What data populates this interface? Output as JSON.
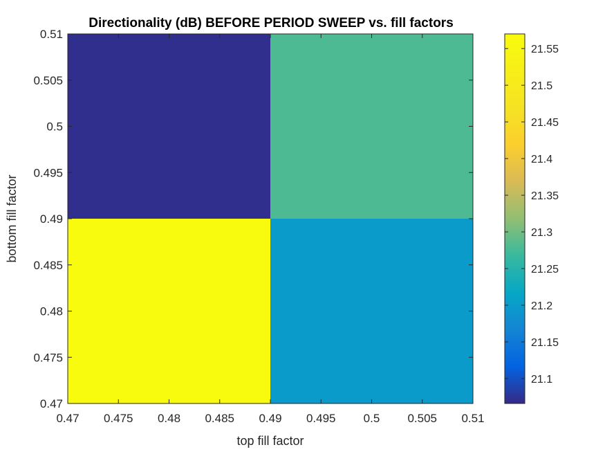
{
  "chart_data": {
    "type": "heatmap",
    "title": "Directionality (dB) BEFORE PERIOD SWEEP vs. fill factors",
    "xlabel": "top fill factor",
    "ylabel": "bottom fill factor",
    "xlim": [
      0.47,
      0.51
    ],
    "ylim": [
      0.47,
      0.51
    ],
    "x_ticks": [
      "0.47",
      "0.475",
      "0.48",
      "0.485",
      "0.49",
      "0.495",
      "0.5",
      "0.505",
      "0.51"
    ],
    "y_ticks": [
      "0.47",
      "0.475",
      "0.48",
      "0.485",
      "0.49",
      "0.495",
      "0.5",
      "0.505",
      "0.51"
    ],
    "cells": [
      {
        "x_range": [
          0.47,
          0.49
        ],
        "y_range": [
          0.47,
          0.49
        ],
        "value": 21.57
      },
      {
        "x_range": [
          0.49,
          0.51
        ],
        "y_range": [
          0.47,
          0.49
        ],
        "value": 21.2
      },
      {
        "x_range": [
          0.47,
          0.49
        ],
        "y_range": [
          0.49,
          0.51
        ],
        "value": 21.07
      },
      {
        "x_range": [
          0.49,
          0.51
        ],
        "y_range": [
          0.49,
          0.51
        ],
        "value": 21.28
      }
    ],
    "colorbar": {
      "range": [
        21.066,
        21.57
      ],
      "colormap": "parula",
      "ticks": [
        "21.1",
        "21.15",
        "21.2",
        "21.25",
        "21.3",
        "21.35",
        "21.4",
        "21.45",
        "21.5",
        "21.55"
      ]
    },
    "grid": false
  }
}
